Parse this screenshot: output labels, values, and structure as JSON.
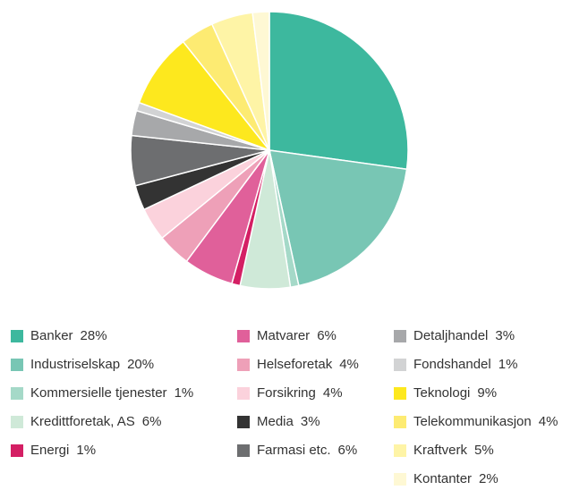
{
  "chart_data": {
    "type": "pie",
    "categories": [
      "Banker",
      "Industriselskap",
      "Kommersielle tjenester",
      "Kredittforetak, AS",
      "Energi",
      "Matvarer",
      "Helseforetak",
      "Forsikring",
      "Media",
      "Farmasi etc.",
      "Detaljhandel",
      "Fondshandel",
      "Teknologi",
      "Telekommunikasjon",
      "Kraftverk",
      "Kontanter"
    ],
    "values": [
      28,
      20,
      1,
      6,
      1,
      6,
      4,
      4,
      3,
      6,
      3,
      1,
      9,
      4,
      5,
      2
    ],
    "value_labels": [
      "28%",
      "20%",
      "1%",
      "6%",
      "1%",
      "6%",
      "4%",
      "4%",
      "3%",
      "6%",
      "3%",
      "1%",
      "9%",
      "4%",
      "5%",
      "2%"
    ],
    "colors": [
      "#3db89e",
      "#78c6b4",
      "#a5d9c8",
      "#cfe9d8",
      "#d41f64",
      "#e0609a",
      "#eea0b8",
      "#fbd2dc",
      "#333333",
      "#6d6e70",
      "#a7a8aa",
      "#d2d3d4",
      "#fde81e",
      "#fdeb72",
      "#fef4a6",
      "#fef8d4"
    ]
  }
}
